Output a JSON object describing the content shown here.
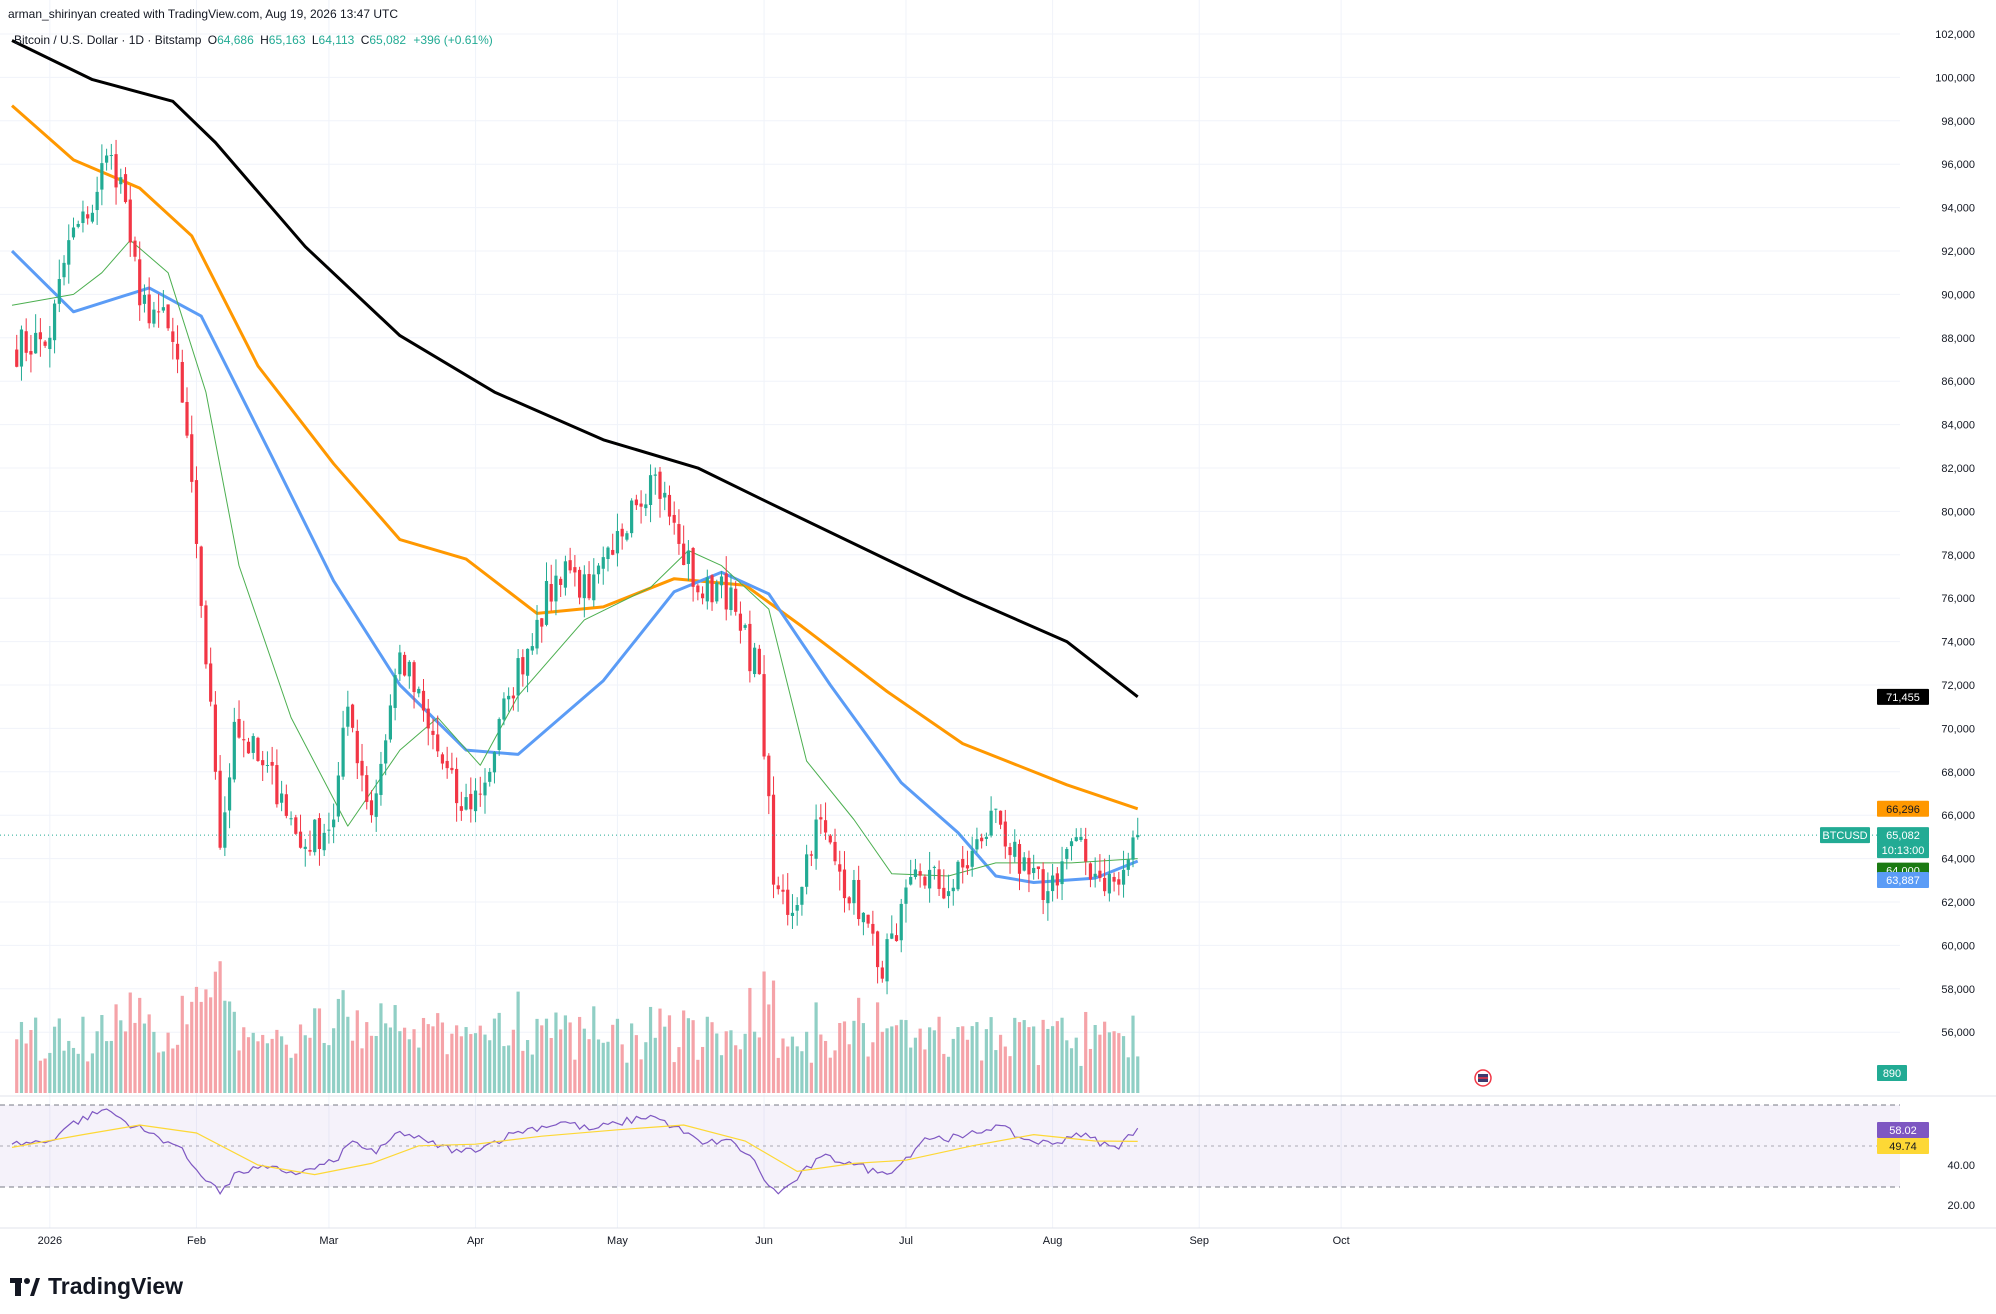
{
  "header": {
    "attribution": "arman_shirinyan created with TradingView.com, Aug 19, 2026 13:47 UTC"
  },
  "legend": {
    "symbol": "Bitcoin / U.S. Dollar · 1D · Bitstamp",
    "o_label": "O",
    "o_value": "64,686",
    "h_label": "H",
    "h_value": "65,163",
    "l_label": "L",
    "l_value": "64,113",
    "c_label": "C",
    "c_value": "65,082",
    "change": "+396 (+0.61%)"
  },
  "brand": {
    "name": "TradingView"
  },
  "colors": {
    "up": "#22ab94",
    "down": "#f23645",
    "vol_up": "#90cfc5",
    "vol_down": "#f5a3a8",
    "ma_black": "#000000",
    "ma_orange": "#ff9800",
    "ma_blue": "#5b9cf6",
    "ma_green": "#4caf50",
    "rsi": "#7e57c2",
    "rsi_ma": "#fdd835",
    "price_line": "#22ab94"
  },
  "price_axis": {
    "ticks": [
      "102,000",
      "100,000",
      "98,000",
      "96,000",
      "94,000",
      "92,000",
      "90,000",
      "88,000",
      "86,000",
      "84,000",
      "82,000",
      "80,000",
      "78,000",
      "76,000",
      "74,000",
      "72,000",
      "70,000",
      "68,000",
      "66,000",
      "64,000",
      "62,000",
      "60,000",
      "58,000",
      "56,000"
    ],
    "labels": {
      "ma200": "71,455",
      "ma100": "66,296",
      "symbol": "BTCUSD",
      "last": "65,082",
      "countdown": "10:13:00",
      "ma20": "64,000",
      "ma50": "63,887",
      "volume": "890"
    }
  },
  "rsi_axis": {
    "ticks": [
      "40.00",
      "20.00"
    ],
    "rsi_value": "58.02",
    "rsi_ma_value": "49.74"
  },
  "time_axis": {
    "labels": [
      "2026",
      "Feb",
      "Mar",
      "Apr",
      "May",
      "Jun",
      "Jul",
      "Aug",
      "Sep",
      "Oct"
    ]
  },
  "chart_data": {
    "type": "candlestick",
    "title": "Bitcoin / U.S. Dollar · 1D · Bitstamp",
    "x_range": [
      "2025-12-24",
      "2026-10-24"
    ],
    "ylim": [
      55000,
      103000
    ],
    "last_close": 65082,
    "keypoints": [
      {
        "date": "2025-12-24",
        "close": 87500
      },
      {
        "date": "2026-01-01",
        "close": 88000
      },
      {
        "date": "2026-01-05",
        "close": 92500
      },
      {
        "date": "2026-01-09",
        "close": 93500
      },
      {
        "date": "2026-01-13",
        "close": 96400
      },
      {
        "date": "2026-01-16",
        "close": 95400
      },
      {
        "date": "2026-01-20",
        "close": 89500
      },
      {
        "date": "2026-01-24",
        "close": 89200
      },
      {
        "date": "2026-01-28",
        "close": 87000
      },
      {
        "date": "2026-02-01",
        "close": 78500
      },
      {
        "date": "2026-02-05",
        "close": 68000
      },
      {
        "date": "2026-02-06",
        "close": 64500
      },
      {
        "date": "2026-02-09",
        "close": 70300
      },
      {
        "date": "2026-02-14",
        "close": 68500
      },
      {
        "date": "2026-02-19",
        "close": 67000
      },
      {
        "date": "2026-02-23",
        "close": 64500
      },
      {
        "date": "2026-03-02",
        "close": 65800
      },
      {
        "date": "2026-03-05",
        "close": 71000
      },
      {
        "date": "2026-03-10",
        "close": 66000
      },
      {
        "date": "2026-03-16",
        "close": 73500
      },
      {
        "date": "2026-03-22",
        "close": 70000
      },
      {
        "date": "2026-03-29",
        "close": 66200
      },
      {
        "date": "2026-04-03",
        "close": 67500
      },
      {
        "date": "2026-04-08",
        "close": 71500
      },
      {
        "date": "2026-04-14",
        "close": 75000
      },
      {
        "date": "2026-04-20",
        "close": 77700
      },
      {
        "date": "2026-04-25",
        "close": 76000
      },
      {
        "date": "2026-04-30",
        "close": 78000
      },
      {
        "date": "2026-05-04",
        "close": 80500
      },
      {
        "date": "2026-05-09",
        "close": 81700
      },
      {
        "date": "2026-05-14",
        "close": 78500
      },
      {
        "date": "2026-05-19",
        "close": 76000
      },
      {
        "date": "2026-05-23",
        "close": 77000
      },
      {
        "date": "2026-05-27",
        "close": 74500
      },
      {
        "date": "2026-05-31",
        "close": 72500
      },
      {
        "date": "2026-06-03",
        "close": 62800
      },
      {
        "date": "2026-06-07",
        "close": 61500
      },
      {
        "date": "2026-06-12",
        "close": 65800
      },
      {
        "date": "2026-06-17",
        "close": 63400
      },
      {
        "date": "2026-06-22",
        "close": 61500
      },
      {
        "date": "2026-06-25",
        "close": 59000
      },
      {
        "date": "2026-06-29",
        "close": 60200
      },
      {
        "date": "2026-07-03",
        "close": 63500
      },
      {
        "date": "2026-07-10",
        "close": 62500
      },
      {
        "date": "2026-07-17",
        "close": 64800
      },
      {
        "date": "2026-07-20",
        "close": 66300
      },
      {
        "date": "2026-07-25",
        "close": 63300
      },
      {
        "date": "2026-07-31",
        "close": 62500
      },
      {
        "date": "2026-08-05",
        "close": 64800
      },
      {
        "date": "2026-08-10",
        "close": 63300
      },
      {
        "date": "2026-08-15",
        "close": 62800
      },
      {
        "date": "2026-08-19",
        "close": 65082
      }
    ],
    "moving_averages": [
      {
        "name": "MA200",
        "color": "#000000",
        "value": 71455,
        "points": [
          [
            "2025-12-24",
            101700
          ],
          [
            "2026-01-10",
            99900
          ],
          [
            "2026-01-27",
            98900
          ],
          [
            "2026-02-05",
            97000
          ],
          [
            "2026-02-24",
            92200
          ],
          [
            "2026-03-16",
            88100
          ],
          [
            "2026-04-05",
            85500
          ],
          [
            "2026-04-28",
            83300
          ],
          [
            "2026-05-18",
            82000
          ],
          [
            "2026-06-02",
            80400
          ],
          [
            "2026-06-23",
            78200
          ],
          [
            "2026-07-13",
            76100
          ],
          [
            "2026-08-04",
            74000
          ],
          [
            "2026-08-19",
            71455
          ]
        ]
      },
      {
        "name": "MA100",
        "color": "#ff9800",
        "value": 66296,
        "points": [
          [
            "2025-12-24",
            98700
          ],
          [
            "2026-01-06",
            96200
          ],
          [
            "2026-01-20",
            94900
          ],
          [
            "2026-01-31",
            92700
          ],
          [
            "2026-02-14",
            86700
          ],
          [
            "2026-03-02",
            82200
          ],
          [
            "2026-03-16",
            78700
          ],
          [
            "2026-03-30",
            77800
          ],
          [
            "2026-04-14",
            75300
          ],
          [
            "2026-04-28",
            75600
          ],
          [
            "2026-05-13",
            76900
          ],
          [
            "2026-05-28",
            76600
          ],
          [
            "2026-06-09",
            74700
          ],
          [
            "2026-06-27",
            71700
          ],
          [
            "2026-07-13",
            69300
          ],
          [
            "2026-08-04",
            67400
          ],
          [
            "2026-08-19",
            66296
          ]
        ]
      },
      {
        "name": "MA50",
        "color": "#5b9cf6",
        "value": 63887,
        "points": [
          [
            "2025-12-24",
            92000
          ],
          [
            "2026-01-06",
            89200
          ],
          [
            "2026-01-22",
            90300
          ],
          [
            "2026-02-02",
            89000
          ],
          [
            "2026-02-17",
            82500
          ],
          [
            "2026-03-02",
            76800
          ],
          [
            "2026-03-16",
            72000
          ],
          [
            "2026-03-30",
            69000
          ],
          [
            "2026-04-10",
            68800
          ],
          [
            "2026-04-28",
            72200
          ],
          [
            "2026-05-13",
            76300
          ],
          [
            "2026-05-23",
            77200
          ],
          [
            "2026-06-02",
            76200
          ],
          [
            "2026-06-15",
            72000
          ],
          [
            "2026-06-30",
            67500
          ],
          [
            "2026-07-12",
            65200
          ],
          [
            "2026-07-20",
            63200
          ],
          [
            "2026-07-28",
            62900
          ],
          [
            "2026-08-10",
            63100
          ],
          [
            "2026-08-19",
            63887
          ]
        ]
      },
      {
        "name": "MA20",
        "color": "#4caf50",
        "value": 64000,
        "points": [
          [
            "2025-12-24",
            89500
          ],
          [
            "2026-01-06",
            90000
          ],
          [
            "2026-01-12",
            91000
          ],
          [
            "2026-01-18",
            92500
          ],
          [
            "2026-01-26",
            91000
          ],
          [
            "2026-02-03",
            85500
          ],
          [
            "2026-02-10",
            77500
          ],
          [
            "2026-02-21",
            70500
          ],
          [
            "2026-03-05",
            65500
          ],
          [
            "2026-03-16",
            69000
          ],
          [
            "2026-03-24",
            70500
          ],
          [
            "2026-04-02",
            68300
          ],
          [
            "2026-04-10",
            71500
          ],
          [
            "2026-04-24",
            75000
          ],
          [
            "2026-05-08",
            76500
          ],
          [
            "2026-05-16",
            78200
          ],
          [
            "2026-05-23",
            77500
          ],
          [
            "2026-06-02",
            75500
          ],
          [
            "2026-06-10",
            68500
          ],
          [
            "2026-06-20",
            65800
          ],
          [
            "2026-06-28",
            63300
          ],
          [
            "2026-07-10",
            63200
          ],
          [
            "2026-07-20",
            63800
          ],
          [
            "2026-08-05",
            63800
          ],
          [
            "2026-08-19",
            64000
          ]
        ]
      }
    ],
    "rsi": {
      "ylim": [
        15,
        75
      ],
      "value": 58.02,
      "ma_value": 49.74,
      "series": [
        [
          "2025-12-24",
          48
        ],
        [
          "2026-01-01",
          50
        ],
        [
          "2026-01-05",
          60
        ],
        [
          "2026-01-13",
          70
        ],
        [
          "2026-01-17",
          62
        ],
        [
          "2026-01-22",
          55
        ],
        [
          "2026-01-28",
          47
        ],
        [
          "2026-02-01",
          32
        ],
        [
          "2026-02-05",
          22
        ],
        [
          "2026-02-06",
          17
        ],
        [
          "2026-02-10",
          31
        ],
        [
          "2026-02-16",
          33
        ],
        [
          "2026-02-23",
          30
        ],
        [
          "2026-03-02",
          37
        ],
        [
          "2026-03-06",
          50
        ],
        [
          "2026-03-11",
          42
        ],
        [
          "2026-03-16",
          56
        ],
        [
          "2026-03-22",
          49
        ],
        [
          "2026-03-29",
          43
        ],
        [
          "2026-04-03",
          47
        ],
        [
          "2026-04-10",
          56
        ],
        [
          "2026-04-20",
          62
        ],
        [
          "2026-04-25",
          57
        ],
        [
          "2026-05-01",
          61
        ],
        [
          "2026-05-08",
          66
        ],
        [
          "2026-05-13",
          59
        ],
        [
          "2026-05-19",
          48
        ],
        [
          "2026-05-24",
          51
        ],
        [
          "2026-05-29",
          41
        ],
        [
          "2026-06-02",
          22
        ],
        [
          "2026-06-04",
          17
        ],
        [
          "2026-06-07",
          24
        ],
        [
          "2026-06-13",
          40
        ],
        [
          "2026-06-19",
          37
        ],
        [
          "2026-06-25",
          30
        ],
        [
          "2026-06-29",
          33
        ],
        [
          "2026-07-05",
          52
        ],
        [
          "2026-07-13",
          52
        ],
        [
          "2026-07-20",
          60
        ],
        [
          "2026-07-26",
          51
        ],
        [
          "2026-08-01",
          48
        ],
        [
          "2026-08-06",
          55
        ],
        [
          "2026-08-13",
          47
        ],
        [
          "2026-08-15",
          45
        ],
        [
          "2026-08-17",
          54
        ],
        [
          "2026-08-19",
          58.02
        ]
      ],
      "ma_series": [
        [
          "2025-12-24",
          46
        ],
        [
          "2026-01-08",
          54
        ],
        [
          "2026-01-20",
          60
        ],
        [
          "2026-02-01",
          55
        ],
        [
          "2026-02-14",
          35
        ],
        [
          "2026-02-26",
          29
        ],
        [
          "2026-03-10",
          36
        ],
        [
          "2026-03-20",
          47
        ],
        [
          "2026-04-01",
          48
        ],
        [
          "2026-04-15",
          53
        ],
        [
          "2026-05-01",
          57
        ],
        [
          "2026-05-15",
          60
        ],
        [
          "2026-05-28",
          50
        ],
        [
          "2026-06-08",
          31
        ],
        [
          "2026-06-20",
          36
        ],
        [
          "2026-07-01",
          38
        ],
        [
          "2026-07-15",
          47
        ],
        [
          "2026-07-28",
          54
        ],
        [
          "2026-08-10",
          50
        ],
        [
          "2026-08-19",
          49.74
        ]
      ]
    },
    "volume": {
      "last": 890
    }
  }
}
